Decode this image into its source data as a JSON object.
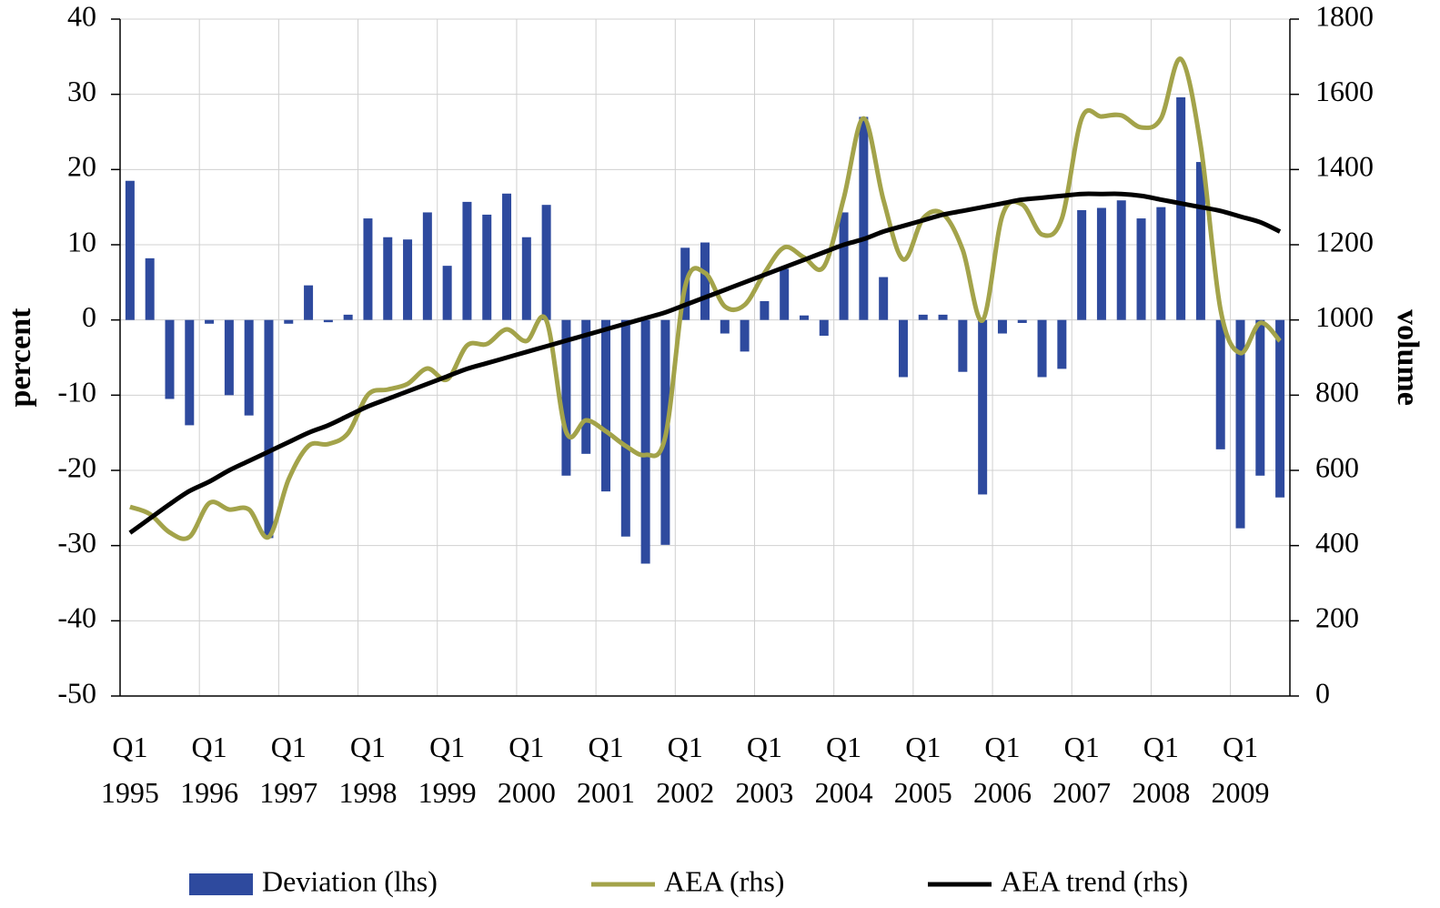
{
  "chart_data": {
    "type": "bar",
    "categories": [
      "Q1 1995",
      null,
      null,
      null,
      "Q1 1996",
      null,
      null,
      null,
      "Q1 1997",
      null,
      null,
      null,
      "Q1 1998",
      null,
      null,
      null,
      "Q1 1999",
      null,
      null,
      null,
      "Q1 2000",
      null,
      null,
      null,
      "Q1 2001",
      null,
      null,
      null,
      "Q1 2002",
      null,
      null,
      null,
      "Q1 2003",
      null,
      null,
      null,
      "Q1 2004",
      null,
      null,
      null,
      "Q1 2005",
      null,
      null,
      null,
      "Q1 2006",
      null,
      null,
      null,
      "Q1 2007",
      null,
      null,
      null,
      "Q1 2008",
      null,
      null,
      null,
      "Q1 2009",
      null,
      null
    ],
    "series": [
      {
        "name": "Deviation (lhs)",
        "color": "#2e4a9e",
        "values": [
          18.5,
          8.2,
          -10.5,
          -14,
          -0.5,
          -10,
          -12.7,
          -29,
          -0.5,
          4.6,
          -0.3,
          0.7,
          13.5,
          11,
          10.7,
          14.3,
          7.2,
          15.7,
          14,
          16.8,
          11,
          15.3,
          -20.7,
          -17.8,
          -22.8,
          -28.8,
          -32.4,
          -29.9,
          9.6,
          10.3,
          -1.8,
          -4.2,
          2.5,
          6.8,
          0.6,
          -2.1,
          14.3,
          27,
          5.7,
          -7.6,
          0.7,
          0.7,
          -6.9,
          -23.2,
          -1.8,
          -0.4,
          -7.6,
          -6.5,
          14.6,
          14.9,
          15.9,
          13.5,
          15,
          29.6,
          21,
          -17.2,
          -27.7,
          -20.7,
          -23.6
        ]
      },
      {
        "name": "AEA (rhs)",
        "color": "#a3a34a",
        "axis": "y2",
        "values": [
          503,
          484,
          435,
          423,
          513,
          496,
          496,
          423,
          576,
          665,
          670,
          699,
          801,
          815,
          830,
          871,
          842,
          932,
          936,
          975,
          944,
          999,
          702,
          733,
          704,
          665,
          641,
          690,
          1089,
          1125,
          1036,
          1040,
          1125,
          1193,
          1166,
          1142,
          1324,
          1536,
          1319,
          1161,
          1270,
          1282,
          1186,
          999,
          1278,
          1307,
          1227,
          1270,
          1536,
          1541,
          1544,
          1512,
          1536,
          1694,
          1464,
          1028,
          912,
          992,
          944
        ]
      },
      {
        "name": "AEA trend (rhs)",
        "color": "#000000",
        "axis": "y2",
        "values": [
          434,
          472,
          510,
          545,
          570,
          600,
          625,
          650,
          675,
          700,
          720,
          745,
          770,
          790,
          810,
          830,
          850,
          870,
          885,
          900,
          915,
          930,
          945,
          960,
          975,
          990,
          1005,
          1020,
          1040,
          1060,
          1080,
          1100,
          1120,
          1140,
          1160,
          1180,
          1200,
          1215,
          1235,
          1250,
          1265,
          1280,
          1290,
          1300,
          1310,
          1320,
          1325,
          1330,
          1335,
          1335,
          1335,
          1330,
          1320,
          1310,
          1300,
          1290,
          1275,
          1260,
          1235
        ]
      }
    ],
    "ylabel": "percent",
    "y2label": "volume",
    "ylim": [
      -50,
      40
    ],
    "yticks": [
      -50,
      -40,
      -30,
      -20,
      -10,
      0,
      10,
      20,
      30,
      40
    ],
    "y2lim": [
      0,
      1800
    ],
    "y2ticks": [
      0,
      200,
      400,
      600,
      800,
      1000,
      1200,
      1400,
      1600,
      1800
    ],
    "grid": true
  }
}
